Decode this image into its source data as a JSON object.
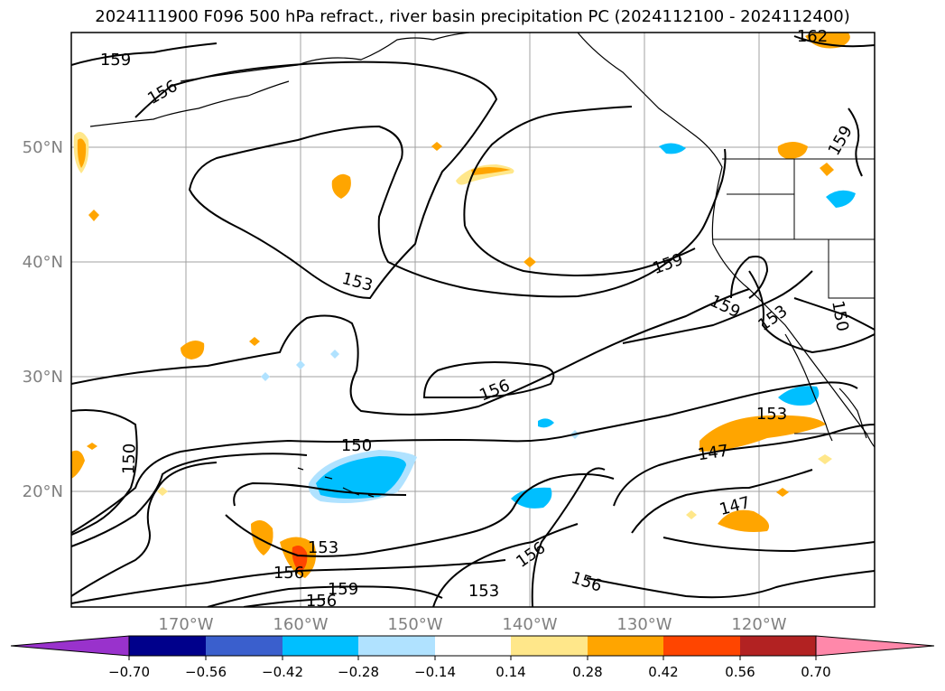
{
  "title": "2024111900 F096 500 hPa refract., river basin precipitation PC (2024112100 - 2024112400)",
  "map": {
    "lon_ticks": [
      "170°W",
      "160°W",
      "150°W",
      "140°W",
      "130°W",
      "120°W"
    ],
    "lat_ticks": [
      "50°N",
      "40°N",
      "30°N",
      "20°N"
    ],
    "contour_labels": [
      "162",
      "159",
      "156",
      "159",
      "153",
      "159",
      "159",
      "153",
      "150",
      "156",
      "153",
      "150",
      "150",
      "147",
      "147",
      "153",
      "156",
      "159",
      "156",
      "153",
      "156"
    ],
    "contour_color": "#000000",
    "gridline_color": "#a0a0a0"
  },
  "colorbar": {
    "ticks": [
      "−0.70",
      "−0.56",
      "−0.42",
      "−0.28",
      "−0.14",
      "0.14",
      "0.28",
      "0.42",
      "0.56",
      "0.70"
    ],
    "colors": [
      "#9932cc",
      "#00008b",
      "#3a5fcd",
      "#00bfff",
      "#b0e2ff",
      "#ffffff",
      "#ffe78a",
      "#ffa500",
      "#ff4500",
      "#b22222",
      "#ff88aa"
    ]
  }
}
